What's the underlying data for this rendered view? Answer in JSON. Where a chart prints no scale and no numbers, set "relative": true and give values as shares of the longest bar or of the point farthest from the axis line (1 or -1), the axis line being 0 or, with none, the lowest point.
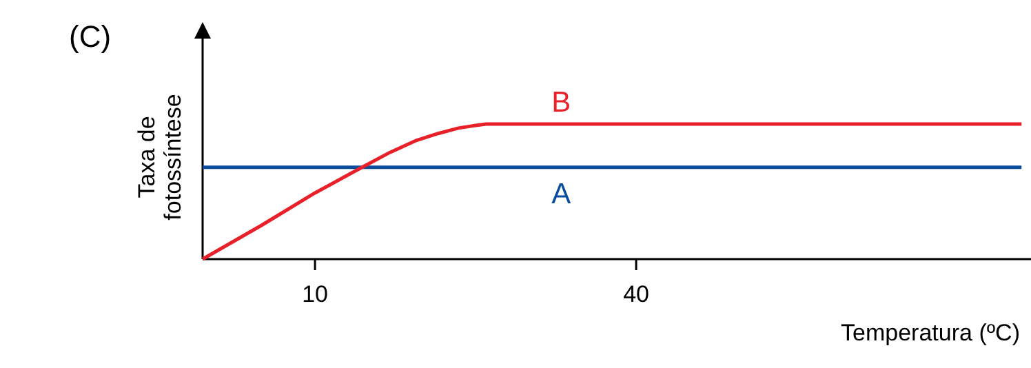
{
  "chart_data": {
    "type": "line",
    "title": "(C)",
    "xlabel": "Temperatura (ºC)",
    "ylabel": "Taxa de fotossíntese",
    "relative": true,
    "xlim": [
      -0.5,
      76.5
    ],
    "xticks": [
      10,
      40
    ],
    "grid": false,
    "marker": "none",
    "line_style": "solid",
    "series": [
      {
        "name": "A",
        "color": "#0a4d9e",
        "x": [
          -0.5,
          76
        ],
        "values": [
          0.68,
          0.68
        ]
      },
      {
        "name": "B",
        "color": "#e8202a",
        "x": [
          -0.5,
          5,
          10,
          14.4,
          17,
          19.5,
          21.5,
          23.4,
          25,
          26,
          35,
          50,
          76
        ],
        "values": [
          0,
          0.25,
          0.49,
          0.68,
          0.79,
          0.88,
          0.93,
          0.97,
          0.99,
          1,
          1,
          1,
          1
        ]
      }
    ]
  }
}
